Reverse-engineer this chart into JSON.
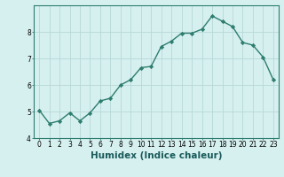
{
  "title": "",
  "xlabel": "Humidex (Indice chaleur)",
  "ylabel": "",
  "x": [
    0,
    1,
    2,
    3,
    4,
    5,
    6,
    7,
    8,
    9,
    10,
    11,
    12,
    13,
    14,
    15,
    16,
    17,
    18,
    19,
    20,
    21,
    22,
    23
  ],
  "y": [
    5.05,
    4.55,
    4.65,
    4.95,
    4.65,
    4.95,
    5.4,
    5.5,
    6.0,
    6.2,
    6.65,
    6.7,
    7.45,
    7.65,
    7.95,
    7.95,
    8.1,
    8.6,
    8.4,
    8.2,
    7.6,
    7.5,
    7.05,
    6.2
  ],
  "line_color": "#2e7d6e",
  "marker": "D",
  "marker_size": 2.2,
  "bg_color": "#d6f0f0",
  "grid_color": "#b8d8d8",
  "ylim": [
    4.0,
    9.0
  ],
  "xlim": [
    -0.5,
    23.5
  ],
  "yticks": [
    4,
    5,
    6,
    7,
    8
  ],
  "xticks": [
    0,
    1,
    2,
    3,
    4,
    5,
    6,
    7,
    8,
    9,
    10,
    11,
    12,
    13,
    14,
    15,
    16,
    17,
    18,
    19,
    20,
    21,
    22,
    23
  ],
  "tick_fontsize": 5.5,
  "xlabel_fontsize": 7.5,
  "line_width": 1.0,
  "spine_color": "#2e7d6e"
}
